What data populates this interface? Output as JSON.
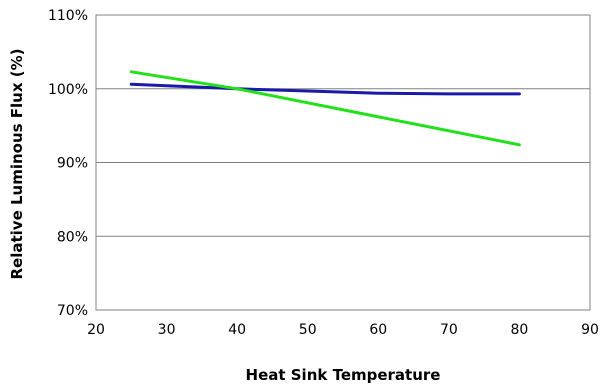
{
  "chart_data": {
    "type": "line",
    "title": "",
    "xlabel": "Heat Sink Temperature",
    "ylabel": "Relative Luminous Flux (%)",
    "xlim": [
      20,
      90
    ],
    "ylim": [
      70,
      110
    ],
    "x_ticks": [
      20,
      30,
      40,
      50,
      60,
      70,
      80,
      90
    ],
    "y_ticks": [
      70,
      80,
      90,
      100,
      110
    ],
    "x_tick_labels": [
      "20",
      "30",
      "40",
      "50",
      "60",
      "70",
      "80",
      "90"
    ],
    "y_tick_labels": [
      "70%",
      "80%",
      "90%",
      "100%",
      "110%"
    ],
    "grid": "horizontal",
    "legend": "none",
    "series": [
      {
        "color": "#1a1aa8",
        "x": [
          25,
          30,
          40,
          50,
          60,
          70,
          80
        ],
        "y": [
          100.6,
          100.4,
          100.0,
          99.7,
          99.4,
          99.3,
          99.3
        ]
      },
      {
        "color": "#22e01a",
        "x": [
          25,
          40,
          80
        ],
        "y": [
          102.3,
          100.0,
          92.4
        ]
      }
    ]
  }
}
